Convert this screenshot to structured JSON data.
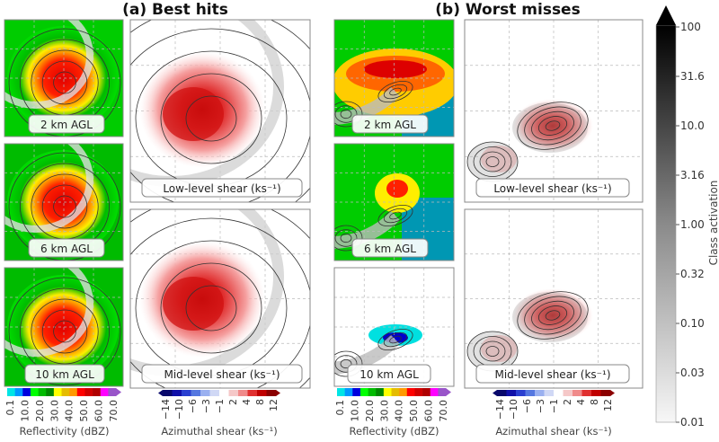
{
  "titles": {
    "a": "(a) Best hits",
    "b": "(b) Worst misses"
  },
  "height_labels": [
    "2 km AGL",
    "6 km AGL",
    "10 km AGL"
  ],
  "shear_labels": [
    "Low-level shear (ks⁻¹)",
    "Mid-level shear (ks⁻¹)"
  ],
  "reflectivity_colorbar": {
    "label": "Reflectivity (dBZ)",
    "ticks": [
      "0.1",
      "10.0",
      "20.0",
      "30.0",
      "40.0",
      "50.0",
      "60.0",
      "70.0"
    ],
    "colors": [
      "#00e5e5",
      "#0099ff",
      "#0000dd",
      "#00ff00",
      "#00bb00",
      "#008800",
      "#ffff00",
      "#e5bc00",
      "#ff9900",
      "#ff0000",
      "#d00000",
      "#b00000",
      "#ff00ff",
      "#9955c9"
    ]
  },
  "shear_colorbar": {
    "label": "Azimuthal shear (ks⁻¹)",
    "ticks": [
      "−14",
      "−10",
      "−6",
      "−3",
      "−1",
      "2",
      "4",
      "8",
      "12"
    ],
    "colors": [
      "#08086b",
      "#1010a8",
      "#2a3fd0",
      "#5577e0",
      "#9ab0f0",
      "#d0d8f5",
      "#ffffff",
      "#f5c8c8",
      "#f08a8a",
      "#e03030",
      "#c00000",
      "#8b0000"
    ]
  },
  "activation_colorbar": {
    "label": "Class activation",
    "ticks": [
      "100",
      "31.6",
      "10.0",
      "3.16",
      "1.00",
      "0.32",
      "0.10",
      "0.03",
      "0.01"
    ]
  }
}
